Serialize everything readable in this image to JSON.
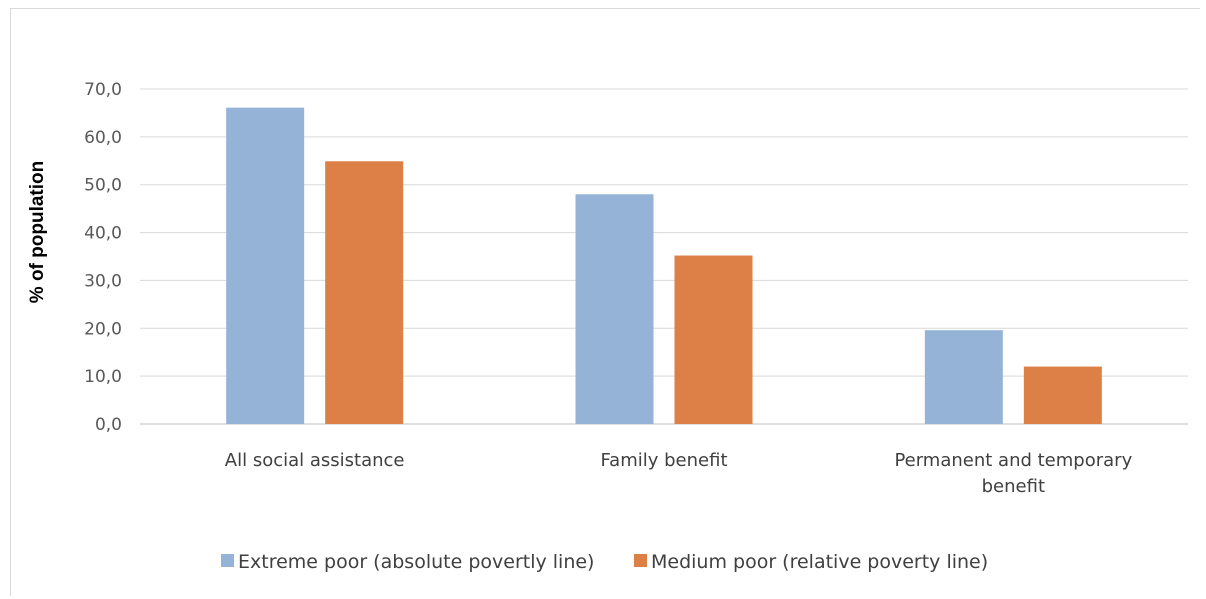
{
  "chart_data": {
    "type": "bar",
    "title": "",
    "xlabel": "",
    "ylabel": "% of population",
    "categories": [
      [
        "All social assistance"
      ],
      [
        "Family benefit"
      ],
      [
        "Permanent and temporary",
        "benefit"
      ]
    ],
    "series": [
      {
        "name": "Extreme poor (absolute povertly line)",
        "color": "#95B3D7",
        "values": [
          66.1,
          48.0,
          19.6
        ]
      },
      {
        "name": "Medium poor (relative poverty line)",
        "color": "#DD8047",
        "values": [
          54.9,
          35.2,
          12.0
        ]
      }
    ],
    "ylim": [
      0,
      70
    ],
    "yticks": [
      "0,0",
      "10,0",
      "20,0",
      "30,0",
      "40,0",
      "50,0",
      "60,0",
      "70,0"
    ],
    "grid": true,
    "legend_position": "bottom"
  }
}
